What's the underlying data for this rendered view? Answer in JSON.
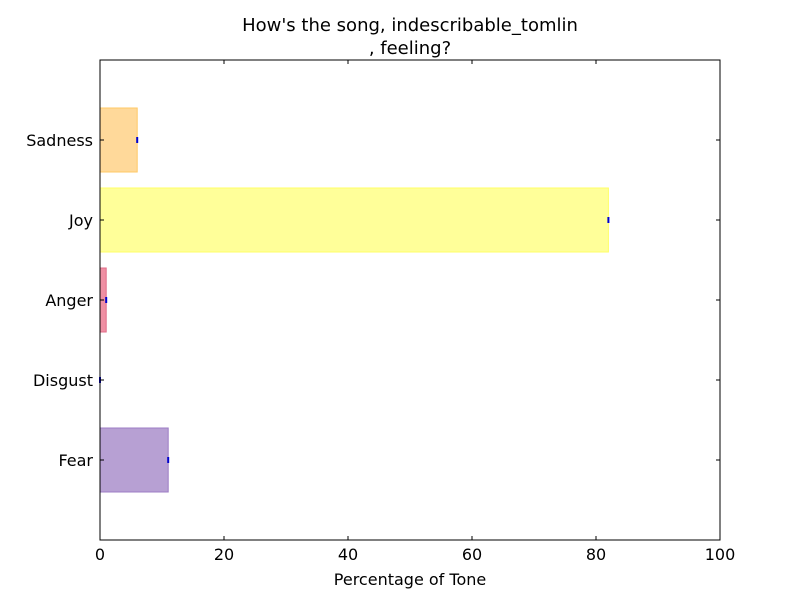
{
  "chart_data": {
    "type": "bar",
    "orientation": "horizontal",
    "title": [
      "How's the song, indescribable_tomlin",
      ", feeling?"
    ],
    "xlabel": "Percentage of Tone",
    "ylabel": "",
    "xlim": [
      0,
      100
    ],
    "xticks": [
      "0",
      "20",
      "40",
      "60",
      "80",
      "100"
    ],
    "categories": [
      "Fear",
      "Disgust",
      "Anger",
      "Joy",
      "Sadness"
    ],
    "values": [
      11,
      0,
      1,
      82,
      6
    ],
    "colors": [
      "#b7a0d3",
      "#9aa0a6",
      "#ef8fa3",
      "#ffff99",
      "#ffd99a"
    ],
    "bar_edge_colors": [
      "#9c7cc4",
      "#9aa0a6",
      "#e16d88",
      "#ffff66",
      "#ffc966"
    ],
    "error_color": "#0000cc",
    "grid": false,
    "legend": "none"
  }
}
